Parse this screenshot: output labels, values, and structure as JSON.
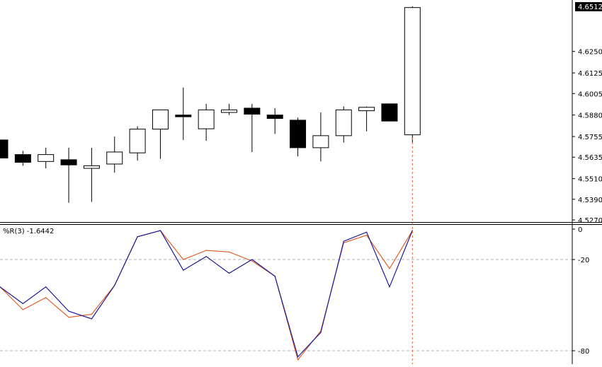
{
  "colors": {
    "background": "#ffffff",
    "axis": "#000000",
    "candle_bull_fill": "#ffffff",
    "candle_bear_fill": "#000000",
    "candle_outline": "#000000",
    "wpr_line": "#1c1c9c",
    "signal_line": "#e0602a",
    "level_line": "#b0b0b0",
    "vline": "#e0602a",
    "price_box_bg": "#000000",
    "price_box_text": "#ffffff"
  },
  "chart_data": [
    {
      "type": "candlestick",
      "panel": "price",
      "title": "",
      "current_price": "4.6512",
      "yticks": [
        "4.6250",
        "4.6125",
        "4.6005",
        "4.5880",
        "4.5755",
        "4.5635",
        "4.5510",
        "4.5390",
        "4.5270"
      ],
      "ylim": [
        4.527,
        4.6512
      ],
      "grid": false,
      "candles": [
        {
          "o": 4.5735,
          "h": 4.5735,
          "l": 4.563,
          "c": 4.563
        },
        {
          "o": 4.565,
          "h": 4.5672,
          "l": 4.5585,
          "c": 4.5605
        },
        {
          "o": 4.561,
          "h": 4.569,
          "l": 4.557,
          "c": 4.565
        },
        {
          "o": 4.562,
          "h": 4.569,
          "l": 4.537,
          "c": 4.559
        },
        {
          "o": 4.557,
          "h": 4.569,
          "l": 4.5375,
          "c": 4.5585
        },
        {
          "o": 4.5595,
          "h": 4.5755,
          "l": 4.5545,
          "c": 4.5665
        },
        {
          "o": 4.566,
          "h": 4.5815,
          "l": 4.5615,
          "c": 4.5798
        },
        {
          "o": 4.5798,
          "h": 4.591,
          "l": 4.5625,
          "c": 4.591
        },
        {
          "o": 4.588,
          "h": 4.604,
          "l": 4.5735,
          "c": 4.587
        },
        {
          "o": 4.58,
          "h": 4.5945,
          "l": 4.573,
          "c": 4.591
        },
        {
          "o": 4.5895,
          "h": 4.5945,
          "l": 4.588,
          "c": 4.591
        },
        {
          "o": 4.592,
          "h": 4.5945,
          "l": 4.5665,
          "c": 4.5885
        },
        {
          "o": 4.588,
          "h": 4.592,
          "l": 4.577,
          "c": 4.586
        },
        {
          "o": 4.585,
          "h": 4.5865,
          "l": 4.564,
          "c": 4.569
        },
        {
          "o": 4.569,
          "h": 4.5895,
          "l": 4.561,
          "c": 4.576
        },
        {
          "o": 4.576,
          "h": 4.593,
          "l": 4.572,
          "c": 4.591
        },
        {
          "o": 4.5905,
          "h": 4.593,
          "l": 4.5785,
          "c": 4.5925
        },
        {
          "o": 4.5945,
          "h": 4.5945,
          "l": 4.5845,
          "c": 4.5845
        },
        {
          "o": 4.5765,
          "h": 4.6512,
          "l": 4.572,
          "c": 4.6505
        }
      ]
    },
    {
      "type": "line",
      "panel": "indicator",
      "label": "%R(3) -1.6442",
      "ylim": [
        -80,
        0
      ],
      "yticks": [
        "0",
        "-20",
        "-80"
      ],
      "levels": [
        -20,
        -80
      ],
      "series": [
        {
          "values": [
            -38,
            -53,
            -45,
            -58,
            -56,
            -37,
            -5,
            -1,
            -20,
            -14,
            -15,
            -21,
            -31,
            -86,
            -67,
            -9,
            -4,
            -26,
            -1
          ]
        },
        {
          "values": [
            -38,
            -49,
            -38,
            -54,
            -59,
            -37,
            -5,
            -1,
            -27,
            -18,
            -29,
            -20,
            -31,
            -84,
            -68,
            -8,
            -2,
            -38,
            -1
          ]
        }
      ]
    }
  ]
}
